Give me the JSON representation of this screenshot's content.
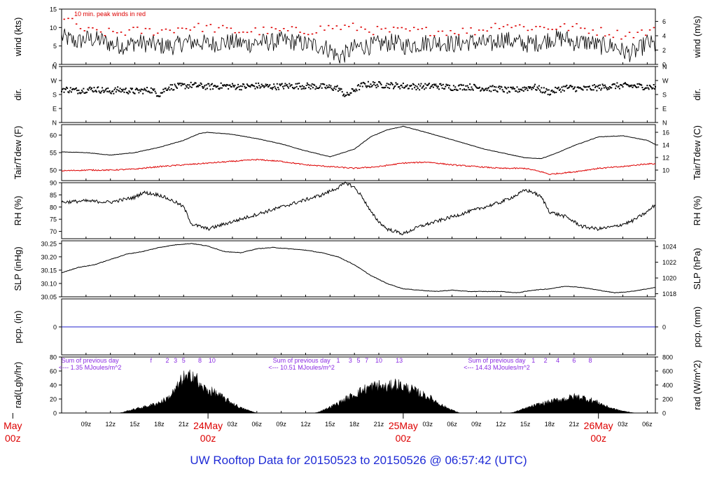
{
  "title": "UW Rooftop Data for 20150523  to  20150526 @ 06:57:42  (UTC)",
  "colors": {
    "axis": "#000000",
    "tair": "#000000",
    "tdew": "#dd0000",
    "peak": "#dd0000",
    "precip_line": "#2020cc",
    "radiation_note": "#8a2be2",
    "date_label": "#dd0000",
    "title": "#1f2bd6"
  },
  "time_axis": {
    "start_hour": 6,
    "end_hour": 79,
    "hour_ticks": [
      {
        "h": 9,
        "label": "09z"
      },
      {
        "h": 12,
        "label": "12z"
      },
      {
        "h": 15,
        "label": "15z"
      },
      {
        "h": 18,
        "label": "18z"
      },
      {
        "h": 21,
        "label": "21z"
      },
      {
        "h": 27,
        "label": "03z"
      },
      {
        "h": 30,
        "label": "06z"
      },
      {
        "h": 33,
        "label": "09z"
      },
      {
        "h": 36,
        "label": "12z"
      },
      {
        "h": 39,
        "label": "15z"
      },
      {
        "h": 42,
        "label": "18z"
      },
      {
        "h": 45,
        "label": "21z"
      },
      {
        "h": 51,
        "label": "03z"
      },
      {
        "h": 54,
        "label": "06z"
      },
      {
        "h": 57,
        "label": "09z"
      },
      {
        "h": 60,
        "label": "12z"
      },
      {
        "h": 63,
        "label": "15z"
      },
      {
        "h": 66,
        "label": "18z"
      },
      {
        "h": 69,
        "label": "21z"
      },
      {
        "h": 75,
        "label": "03z"
      },
      {
        "h": 78,
        "label": "06z"
      }
    ],
    "day_labels": [
      {
        "h": 0,
        "date": "May",
        "time": "00z"
      },
      {
        "h": 24,
        "date": "24May",
        "time": "00z"
      },
      {
        "h": 48,
        "date": "25May",
        "time": "00z"
      },
      {
        "h": 72,
        "date": "26May",
        "time": "00z"
      }
    ]
  },
  "chart_data": [
    {
      "type": "line",
      "panel": "wind",
      "ylabel": "wind (kts)",
      "ylabel_right": "wind (m/s)",
      "ylim": [
        0,
        15
      ],
      "yticks": [
        0,
        5,
        10,
        15
      ],
      "yticks_right": [
        0,
        2,
        4,
        6
      ],
      "right_scale": 1.944,
      "annotation": "10 min. peak winds in red",
      "series": [
        {
          "name": "peak",
          "x": [
            6,
            9,
            12,
            15,
            18,
            21,
            24,
            27,
            30,
            33,
            36,
            39,
            42,
            45,
            48,
            51,
            54,
            57,
            60,
            63,
            66,
            69,
            72,
            75,
            79
          ],
          "values": [
            13,
            9,
            8.5,
            9,
            9,
            10,
            10,
            9,
            9,
            9,
            9,
            10,
            10,
            9,
            9,
            9,
            9,
            9,
            11,
            10,
            10,
            10,
            9,
            8,
            9
          ]
        },
        {
          "name": "",
          "x": [
            6,
            8,
            9,
            11,
            12,
            14,
            15,
            17,
            18,
            20,
            21,
            23,
            24,
            26,
            27,
            29,
            30,
            32,
            33,
            35,
            36,
            38,
            39,
            40,
            41,
            42,
            43,
            44,
            45,
            47,
            48,
            50,
            51,
            53,
            54,
            56,
            57,
            59,
            60,
            62,
            63,
            65,
            66,
            68,
            69,
            71,
            72,
            74,
            75,
            76,
            77,
            78,
            79
          ],
          "values": [
            7.5,
            6,
            7,
            6.5,
            5.5,
            5,
            6,
            5.5,
            5,
            5,
            6,
            6,
            5.5,
            6,
            6,
            5.5,
            6,
            6,
            6.5,
            6,
            5.5,
            5,
            4,
            2,
            3,
            4.5,
            5,
            5,
            5.5,
            6,
            5,
            5.5,
            6,
            6,
            5.5,
            6,
            6,
            5.5,
            7,
            6,
            5.5,
            6,
            7,
            7,
            6,
            6,
            5,
            5,
            3.5,
            3,
            4,
            6,
            5
          ]
        }
      ]
    },
    {
      "type": "scatter",
      "panel": "dir",
      "ylabel": "dir.",
      "ylabel_right": "dir.",
      "ylim": [
        0,
        360
      ],
      "yticks": [
        0,
        90,
        180,
        270,
        360
      ],
      "ytick_labels": [
        "N",
        "E",
        "S",
        "W",
        "N"
      ],
      "x": [
        6,
        8,
        10,
        12,
        13,
        14,
        15,
        16,
        17,
        18,
        19,
        20,
        21,
        22,
        23,
        24,
        26,
        28,
        30,
        32,
        34,
        36,
        38,
        40,
        41,
        42,
        43,
        44,
        46,
        48,
        50,
        52,
        54,
        56,
        58,
        60,
        61,
        62,
        63,
        64,
        65,
        66,
        68,
        70,
        72,
        74,
        76,
        78,
        79
      ],
      "values": [
        215,
        205,
        215,
        200,
        210,
        205,
        200,
        205,
        210,
        180,
        225,
        230,
        235,
        240,
        235,
        230,
        235,
        230,
        235,
        230,
        235,
        235,
        230,
        220,
        170,
        210,
        240,
        245,
        240,
        235,
        230,
        235,
        225,
        230,
        220,
        215,
        205,
        210,
        220,
        230,
        210,
        195,
        225,
        215,
        225,
        235,
        235,
        230,
        225
      ]
    },
    {
      "type": "line",
      "panel": "temp",
      "ylabel": "Tair/Tdew (F)",
      "ylabel_right": "Tair/Tdew (C)",
      "ylim": [
        47,
        63
      ],
      "yticks": [
        50,
        55,
        60
      ],
      "yticks_right": [
        10,
        12,
        14,
        16
      ],
      "series": [
        {
          "name": "Tair",
          "x": [
            6,
            9,
            12,
            15,
            18,
            21,
            23,
            24,
            27,
            30,
            33,
            36,
            39,
            42,
            44,
            46,
            48,
            50,
            52,
            55,
            58,
            61,
            63,
            65,
            67,
            69,
            72,
            75,
            78,
            79
          ],
          "values": [
            55.2,
            55,
            54.3,
            55,
            56.5,
            58.5,
            60.5,
            60.8,
            60.2,
            59,
            57.5,
            55.5,
            53.8,
            56,
            59.5,
            61.5,
            62.5,
            61.3,
            60,
            58,
            56,
            54.5,
            53.5,
            53.3,
            55,
            57,
            59.5,
            59.8,
            58.5,
            57.3
          ]
        },
        {
          "name": "Tdew",
          "x": [
            6,
            9,
            12,
            15,
            18,
            21,
            24,
            27,
            30,
            33,
            36,
            39,
            42,
            45,
            48,
            51,
            54,
            57,
            60,
            63,
            65,
            66,
            69,
            72,
            75,
            78,
            79
          ],
          "values": [
            49.8,
            50,
            50,
            50.3,
            51,
            51.5,
            52,
            52.5,
            53,
            52.5,
            51.5,
            51,
            50.5,
            51,
            52,
            52.3,
            51.5,
            51,
            50.5,
            50.5,
            49.5,
            48.8,
            49.5,
            50.5,
            51,
            51.8,
            51.8
          ]
        }
      ]
    },
    {
      "type": "line",
      "panel": "rh",
      "ylabel": "RH (%)",
      "ylabel_right": "RH (%)",
      "ylim": [
        67,
        90
      ],
      "yticks": [
        70,
        75,
        80,
        85,
        90
      ],
      "x": [
        6,
        9,
        12,
        15,
        16,
        18,
        20,
        21,
        22,
        24,
        26,
        28,
        30,
        32,
        34,
        36,
        38,
        40,
        41,
        42,
        43,
        44,
        45,
        46,
        48,
        50,
        52,
        54,
        56,
        58,
        60,
        62,
        63,
        64,
        65,
        66,
        68,
        70,
        72,
        74,
        76,
        78,
        79
      ],
      "values": [
        82,
        82.5,
        82,
        84,
        86,
        85,
        82,
        80,
        73,
        71,
        73,
        75,
        77,
        79,
        81,
        83,
        85,
        88,
        90,
        88,
        84,
        78,
        74,
        71,
        69,
        72,
        74,
        76,
        78,
        80,
        82,
        85,
        87,
        86,
        84,
        78,
        76,
        72,
        71,
        72,
        74,
        78,
        81
      ]
    },
    {
      "type": "line",
      "panel": "slp",
      "ylabel": "SLP (inHg)",
      "ylabel_right": "SLP (hPa)",
      "ylim": [
        30.05,
        30.26
      ],
      "yticks": [
        30.05,
        30.1,
        30.15,
        30.2,
        30.25
      ],
      "yticks_right": [
        1018,
        1020,
        1022,
        1024
      ],
      "x": [
        6,
        8,
        10,
        12,
        14,
        16,
        18,
        20,
        22,
        24,
        26,
        28,
        30,
        32,
        34,
        36,
        38,
        40,
        42,
        44,
        46,
        48,
        50,
        52,
        54,
        56,
        58,
        60,
        62,
        64,
        66,
        68,
        70,
        72,
        74,
        76,
        78,
        79
      ],
      "values": [
        30.14,
        30.16,
        30.17,
        30.19,
        30.21,
        30.22,
        30.235,
        30.245,
        30.25,
        30.24,
        30.22,
        30.215,
        30.23,
        30.235,
        30.23,
        30.225,
        30.215,
        30.2,
        30.17,
        30.13,
        30.1,
        30.08,
        30.075,
        30.07,
        30.075,
        30.07,
        30.07,
        30.07,
        30.065,
        30.075,
        30.08,
        30.09,
        30.085,
        30.075,
        30.065,
        30.07,
        30.08,
        30.085
      ]
    },
    {
      "type": "line",
      "panel": "pcp",
      "ylabel": "pcp. (in)",
      "ylabel_right": "pcp. (mm)",
      "ylim": [
        -1,
        1
      ],
      "yticks": [
        0
      ],
      "yticks_right": [
        0
      ],
      "x": [
        6,
        79
      ],
      "values": [
        0,
        0
      ]
    },
    {
      "type": "area",
      "panel": "rad",
      "ylabel": "rad(Lgly/hr)",
      "ylabel_right": "rad (W/m^2)",
      "ylim": [
        0,
        80
      ],
      "yticks": [
        0,
        20,
        40,
        60,
        80
      ],
      "yticks_right": [
        0,
        200,
        400,
        600,
        800
      ],
      "x": [
        6,
        13,
        13.5,
        14,
        15,
        16,
        17,
        18,
        19,
        20,
        20.5,
        21,
        21.5,
        22,
        22.5,
        23,
        24,
        25,
        26,
        27,
        28,
        29,
        29.5,
        30,
        37,
        37.5,
        38,
        39,
        40,
        41,
        42,
        43,
        44,
        45,
        46,
        47,
        48,
        49,
        50,
        51,
        52,
        53,
        54,
        54.5,
        55,
        61,
        61.5,
        62,
        63,
        64,
        65,
        66,
        67,
        68,
        69,
        70,
        71,
        72,
        73,
        74,
        75,
        76,
        76.5,
        79
      ],
      "values": [
        0,
        0,
        1,
        3,
        6,
        9,
        12,
        16,
        22,
        35,
        45,
        55,
        50,
        62,
        55,
        40,
        35,
        30,
        22,
        15,
        8,
        4,
        2,
        0,
        0,
        1,
        4,
        9,
        15,
        22,
        28,
        35,
        40,
        42,
        38,
        45,
        40,
        36,
        30,
        25,
        18,
        10,
        5,
        2,
        0,
        0,
        1,
        3,
        7,
        11,
        14,
        17,
        20,
        22,
        25,
        24,
        20,
        16,
        10,
        6,
        3,
        1,
        0,
        0
      ]
    }
  ],
  "radiation_notes": [
    {
      "h": 9.5,
      "line1": "Sum of previous day",
      "line2": "<--- 1.35 MJoules/m^2"
    },
    {
      "h": 35.5,
      "line1": "Sum of previous day",
      "line2": "<--- 10.51 MJoules/m^2"
    },
    {
      "h": 59.5,
      "line1": "Sum of previous day",
      "line2": "<--- 14.43 MJoules/m^2"
    }
  ],
  "hour_markers": [
    {
      "h": 17,
      "t": "f"
    },
    {
      "h": 19,
      "t": "2"
    },
    {
      "h": 20,
      "t": "3"
    },
    {
      "h": 21,
      "t": "5"
    },
    {
      "h": 23,
      "t": "8"
    },
    {
      "h": 24.5,
      "t": "10"
    },
    {
      "h": 40,
      "t": "1"
    },
    {
      "h": 41.5,
      "t": "3"
    },
    {
      "h": 42.5,
      "t": "5"
    },
    {
      "h": 43.5,
      "t": "7"
    },
    {
      "h": 45,
      "t": "10"
    },
    {
      "h": 47.5,
      "t": "13"
    },
    {
      "h": 64,
      "t": "1"
    },
    {
      "h": 65.5,
      "t": "2"
    },
    {
      "h": 67,
      "t": "4"
    },
    {
      "h": 69,
      "t": "6"
    },
    {
      "h": 71,
      "t": "8"
    }
  ]
}
